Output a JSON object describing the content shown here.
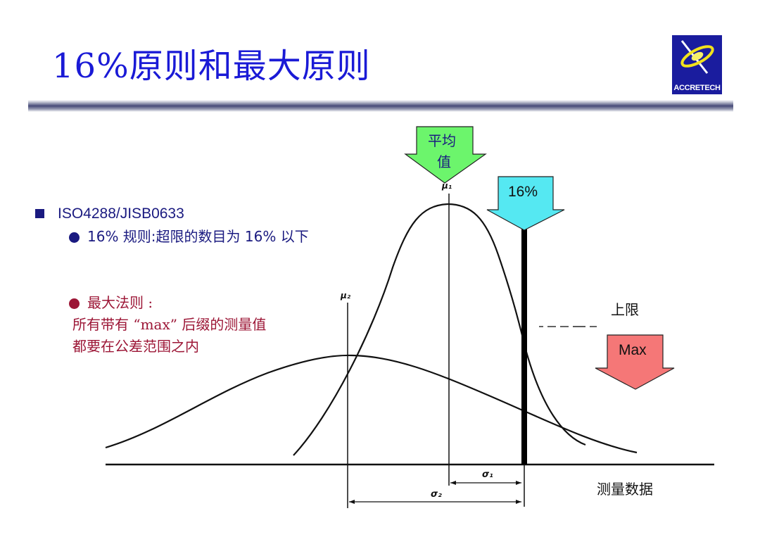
{
  "slide": {
    "title": "16%原则和最大原则",
    "logo_text": "ACCRETECH"
  },
  "bullets": {
    "standard": "ISO4288/JISB0633",
    "rule_16": "16% 规则:超限的数目为 16% 以下",
    "max_rule_heading": "最大法则 :",
    "max_rule_line1": "所有带有 “max” 后缀的测量值",
    "max_rule_line2": "都要在公差范围之内"
  },
  "diagram": {
    "mean_arrow_line1": "平均",
    "mean_arrow_line2": "值",
    "pct_arrow": "16%",
    "max_arrow": "Max",
    "upper_limit": "上限",
    "axis_label": "测量数据",
    "mu1": "μ₁",
    "mu2": "μ₂",
    "sigma1": "σ₁",
    "sigma2": "σ₂"
  },
  "colors": {
    "title": "#1a1ad6",
    "mean_arrow": "#6cf56c",
    "pct_arrow": "#55e8f2",
    "max_arrow": "#f57777",
    "text_blue": "#1a1a80",
    "text_red": "#9c1636"
  }
}
